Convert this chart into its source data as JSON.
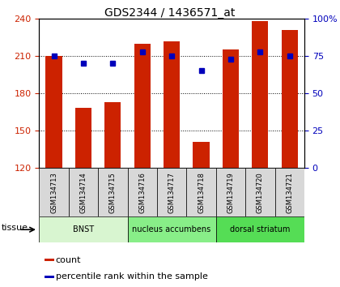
{
  "title": "GDS2344 / 1436571_at",
  "samples": [
    "GSM134713",
    "GSM134714",
    "GSM134715",
    "GSM134716",
    "GSM134717",
    "GSM134718",
    "GSM134719",
    "GSM134720",
    "GSM134721"
  ],
  "counts": [
    210,
    168,
    173,
    220,
    222,
    141,
    215,
    238,
    231
  ],
  "percentiles": [
    75,
    70,
    70,
    78,
    75,
    65,
    73,
    78,
    75
  ],
  "ylim_left": [
    120,
    240
  ],
  "ylim_right": [
    0,
    100
  ],
  "yticks_left": [
    120,
    150,
    180,
    210,
    240
  ],
  "yticks_right": [
    0,
    25,
    50,
    75,
    100
  ],
  "tissue_groups": [
    {
      "label": "BNST",
      "start": 0,
      "end": 3,
      "color": "#d8f5d0"
    },
    {
      "label": "nucleus accumbens",
      "start": 3,
      "end": 6,
      "color": "#88ee88"
    },
    {
      "label": "dorsal striatum",
      "start": 6,
      "end": 9,
      "color": "#55dd55"
    }
  ],
  "bar_color": "#cc2200",
  "dot_color": "#0000bb",
  "sample_box_color": "#d8d8d8",
  "tissue_label": "tissue",
  "legend_count": "count",
  "legend_percentile": "percentile rank within the sample",
  "ylabel_left_color": "#cc2200",
  "ylabel_right_color": "#0000bb",
  "title_fontsize": 10,
  "tick_labelsize": 8,
  "bar_width": 0.55
}
